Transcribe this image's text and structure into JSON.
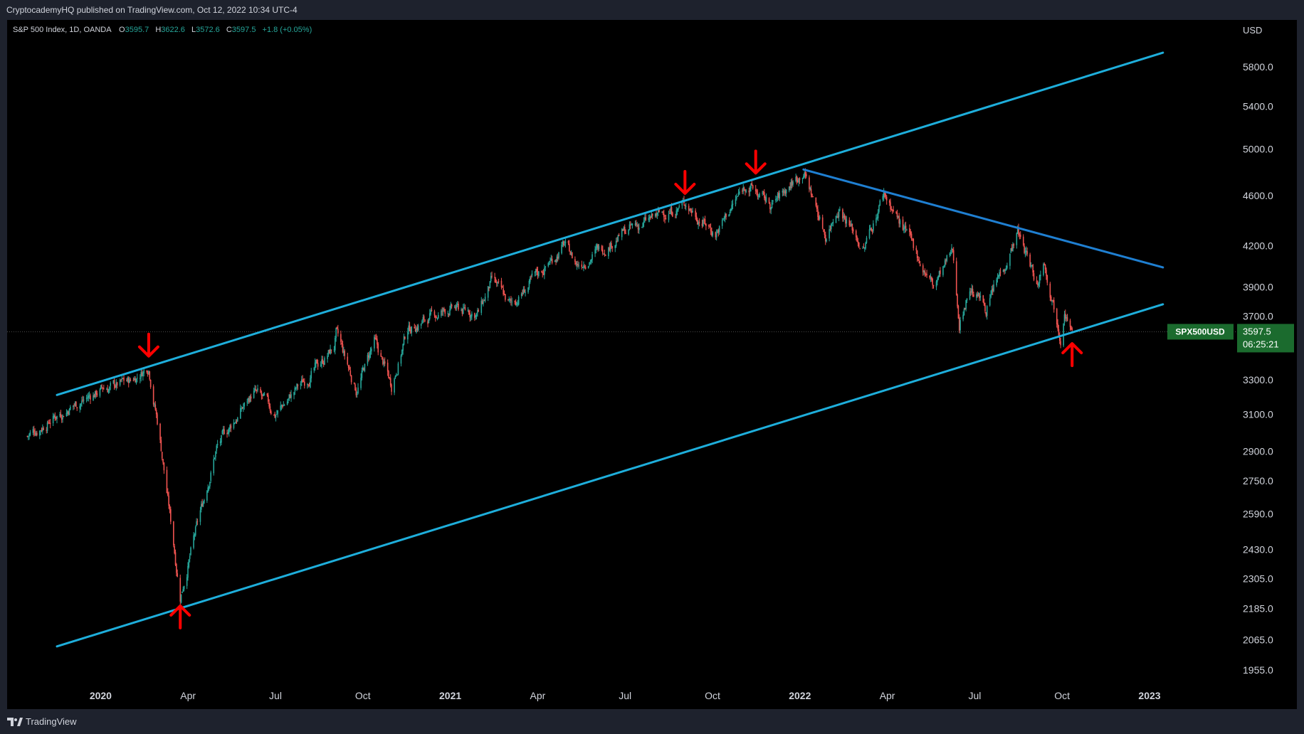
{
  "header": {
    "published": "CryptocademyHQ published on TradingView.com, Oct 12, 2022 10:34 UTC-4"
  },
  "legend": {
    "symbol": "S&P 500 Index, 1D, OANDA",
    "open_label": "O",
    "open": "3595.7",
    "high_label": "H",
    "high": "3622.6",
    "low_label": "L",
    "low": "3572.6",
    "close_label": "C",
    "close": "3597.5",
    "change": "+1.8 (+0.05%)"
  },
  "price_axis": {
    "currency": "USD",
    "ticks": [
      "5800.0",
      "5400.0",
      "5000.0",
      "4600.0",
      "4200.0",
      "3900.0",
      "3700.0",
      "3300.0",
      "3100.0",
      "2900.0",
      "2750.0",
      "2590.0",
      "2430.0",
      "2305.0",
      "2185.0",
      "2065.0",
      "1955.0"
    ]
  },
  "time_axis": {
    "ticks": [
      {
        "label": "2020",
        "bold": true
      },
      {
        "label": "Apr",
        "bold": false
      },
      {
        "label": "Jul",
        "bold": false
      },
      {
        "label": "Oct",
        "bold": false
      },
      {
        "label": "2021",
        "bold": true
      },
      {
        "label": "Apr",
        "bold": false
      },
      {
        "label": "Jul",
        "bold": false
      },
      {
        "label": "Oct",
        "bold": false
      },
      {
        "label": "2022",
        "bold": true
      },
      {
        "label": "Apr",
        "bold": false
      },
      {
        "label": "Jul",
        "bold": false
      },
      {
        "label": "Oct",
        "bold": false
      },
      {
        "label": "2023",
        "bold": true
      }
    ]
  },
  "price_tag": {
    "symbol": "SPX500USD",
    "price": "3597.5",
    "countdown": "06:25:21"
  },
  "footer": {
    "brand": "TradingView"
  },
  "colors": {
    "background": "#000000",
    "panel": "#1e222d",
    "up_candle": "#26a69a",
    "down_candle": "#ef5350",
    "channel_line": "#1eaedb",
    "trend_line": "#1f7fd1",
    "arrow": "#ff0000",
    "price_tag_bg": "#1b6b2e",
    "axis_text": "#d1d4dc"
  },
  "chart_data": {
    "type": "candlestick",
    "title": "S&P 500 Index, 1D, OANDA",
    "ylabel": "USD",
    "y_scale": "log",
    "ylim": [
      1900,
      6000
    ],
    "x_range": [
      "2019-10-15",
      "2023-03-15"
    ],
    "last_price": 3597.5,
    "price_path": [
      [
        "2019-10-15",
        2980
      ],
      [
        "2019-11-15",
        3100
      ],
      [
        "2019-12-31",
        3240
      ],
      [
        "2020-01-31",
        3290
      ],
      [
        "2020-02-19",
        3386
      ],
      [
        "2020-03-01",
        3000
      ],
      [
        "2020-03-23",
        2237
      ],
      [
        "2020-04-30",
        2920
      ],
      [
        "2020-06-08",
        3230
      ],
      [
        "2020-06-30",
        3100
      ],
      [
        "2020-08-31",
        3500
      ],
      [
        "2020-09-02",
        3580
      ],
      [
        "2020-09-23",
        3240
      ],
      [
        "2020-10-12",
        3530
      ],
      [
        "2020-10-30",
        3270
      ],
      [
        "2020-11-16",
        3620
      ],
      [
        "2020-12-31",
        3750
      ],
      [
        "2021-01-29",
        3720
      ],
      [
        "2021-02-12",
        3935
      ],
      [
        "2021-03-04",
        3770
      ],
      [
        "2021-04-29",
        4210
      ],
      [
        "2021-05-12",
        4060
      ],
      [
        "2021-06-30",
        4300
      ],
      [
        "2021-08-31",
        4525
      ],
      [
        "2021-09-02",
        4540
      ],
      [
        "2021-10-04",
        4300
      ],
      [
        "2021-11-05",
        4700
      ],
      [
        "2021-12-01",
        4510
      ],
      [
        "2022-01-04",
        4818
      ],
      [
        "2022-01-27",
        4280
      ],
      [
        "2022-02-10",
        4520
      ],
      [
        "2022-03-08",
        4170
      ],
      [
        "2022-03-29",
        4631
      ],
      [
        "2022-05-20",
        3900
      ],
      [
        "2022-06-09",
        4150
      ],
      [
        "2022-06-16",
        3666
      ],
      [
        "2022-06-27",
        3900
      ],
      [
        "2022-07-14",
        3760
      ],
      [
        "2022-08-16",
        4305
      ],
      [
        "2022-09-06",
        3910
      ],
      [
        "2022-09-12",
        4110
      ],
      [
        "2022-09-30",
        3585
      ],
      [
        "2022-10-04",
        3790
      ],
      [
        "2022-10-12",
        3597.5
      ]
    ],
    "drawings": {
      "channel_upper": [
        [
          "2019-11-15",
          3210
        ],
        [
          "2023-01-15",
          5950
        ]
      ],
      "channel_lower": [
        [
          "2019-11-15",
          2040
        ],
        [
          "2023-01-15",
          3780
        ]
      ],
      "descending_trendline": [
        [
          "2022-01-04",
          4820
        ],
        [
          "2023-01-15",
          4040
        ]
      ],
      "arrows_down": [
        [
          "2020-02-19",
          3386
        ],
        [
          "2021-09-02",
          4540
        ],
        [
          "2021-11-15",
          4710
        ]
      ],
      "arrows_up": [
        [
          "2020-03-23",
          2237
        ],
        [
          "2022-10-12",
          3590
        ]
      ]
    }
  }
}
